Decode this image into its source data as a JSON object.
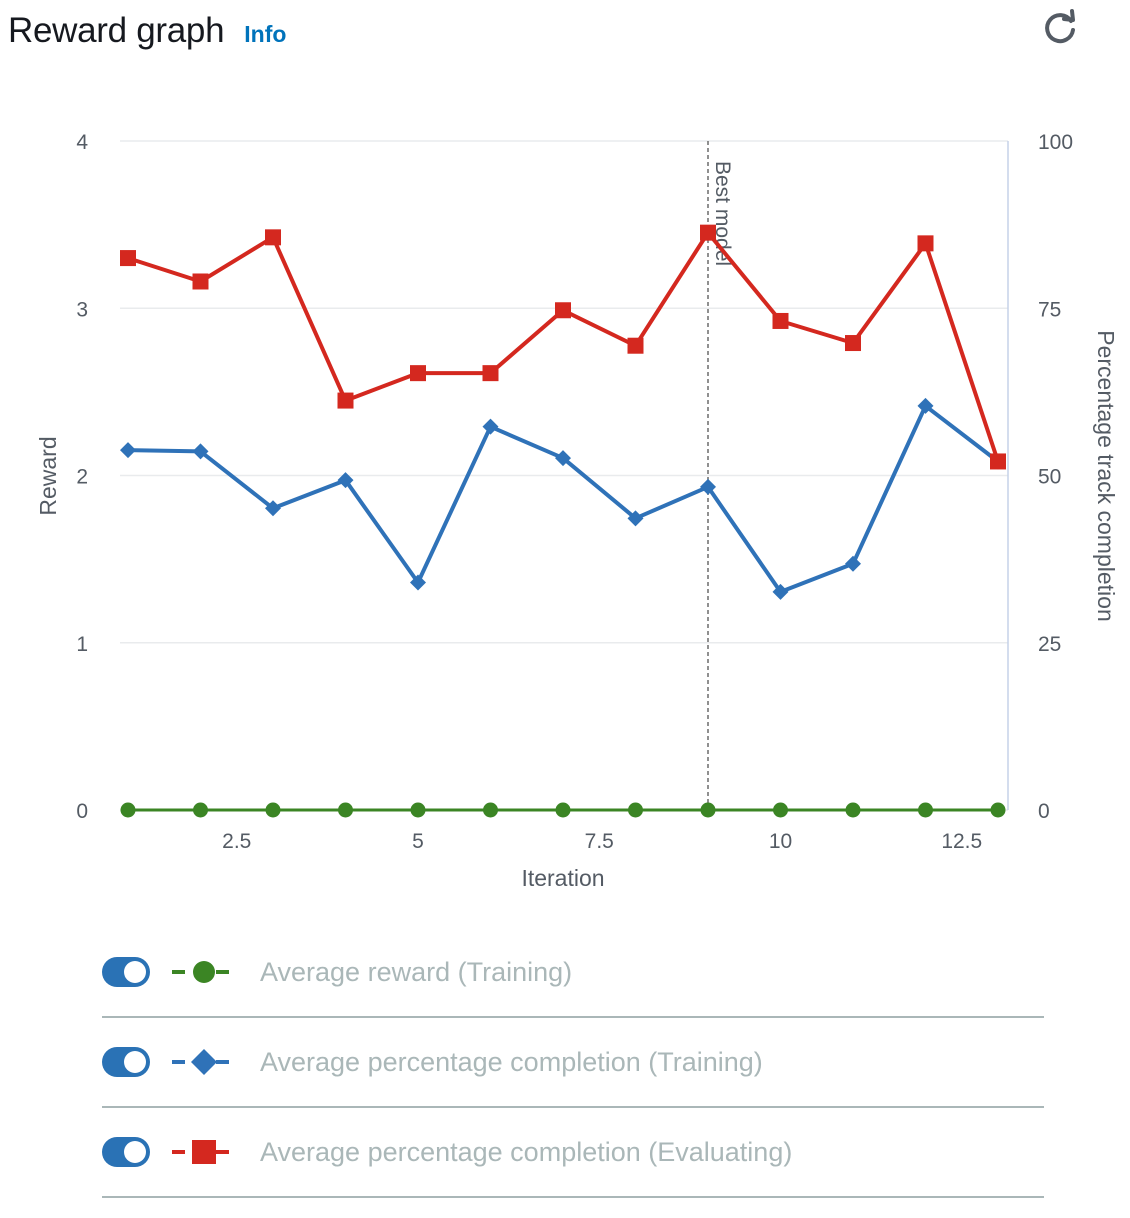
{
  "header": {
    "title": "Reward graph",
    "info_label": "Info"
  },
  "colors": {
    "reward": "#3b8524",
    "training": "#2f72b8",
    "evaluating": "#d4281f",
    "grid": "#e9ebed",
    "axis_text": "#545b64"
  },
  "chart_data": {
    "type": "line",
    "xlabel": "Iteration",
    "ylabel": "Reward",
    "y2label": "Percentage track completion",
    "xlim": [
      1,
      13
    ],
    "ylim": [
      0,
      4
    ],
    "y2lim": [
      0,
      100
    ],
    "x_ticks": [
      2.5,
      5,
      7.5,
      10,
      12.5
    ],
    "x_tick_labels": [
      "2.5",
      "5",
      "7.5",
      "10",
      "12.5"
    ],
    "y_ticks": [
      0,
      1,
      2,
      3,
      4
    ],
    "y_tick_labels": [
      "0",
      "1",
      "2",
      "3",
      "4"
    ],
    "y2_ticks": [
      0,
      25,
      50,
      75,
      100
    ],
    "y2_tick_labels": [
      "0",
      "25",
      "50",
      "75",
      "100"
    ],
    "grid": true,
    "annotation": {
      "x": 9,
      "label": "Best model"
    },
    "x": [
      1,
      2,
      3,
      4,
      5,
      6,
      7,
      8,
      9,
      10,
      11,
      12,
      13
    ],
    "series": [
      {
        "name": "Average reward (Training)",
        "axis": "left",
        "marker": "circle",
        "color": "#3b8524",
        "values": [
          0,
          0,
          0,
          0,
          0,
          0,
          0,
          0,
          0,
          0,
          0,
          0,
          0
        ]
      },
      {
        "name": "Average percentage completion (Training)",
        "axis": "right",
        "marker": "diamond",
        "color": "#2f72b8",
        "values": [
          53.8,
          53.6,
          45.1,
          49.3,
          34.0,
          57.3,
          52.6,
          43.6,
          48.3,
          32.6,
          36.8,
          60.4,
          52.1
        ]
      },
      {
        "name": "Average percentage completion (Evaluating)",
        "axis": "right",
        "marker": "square",
        "color": "#d4281f",
        "values": [
          82.5,
          79.0,
          85.6,
          61.2,
          65.3,
          65.3,
          74.7,
          69.4,
          86.3,
          73.1,
          69.8,
          84.7,
          52.1
        ]
      }
    ]
  },
  "legend": [
    {
      "label": "Average reward (Training)",
      "enabled": true
    },
    {
      "label": "Average percentage completion (Training)",
      "enabled": true
    },
    {
      "label": "Average percentage completion (Evaluating)",
      "enabled": true
    }
  ]
}
